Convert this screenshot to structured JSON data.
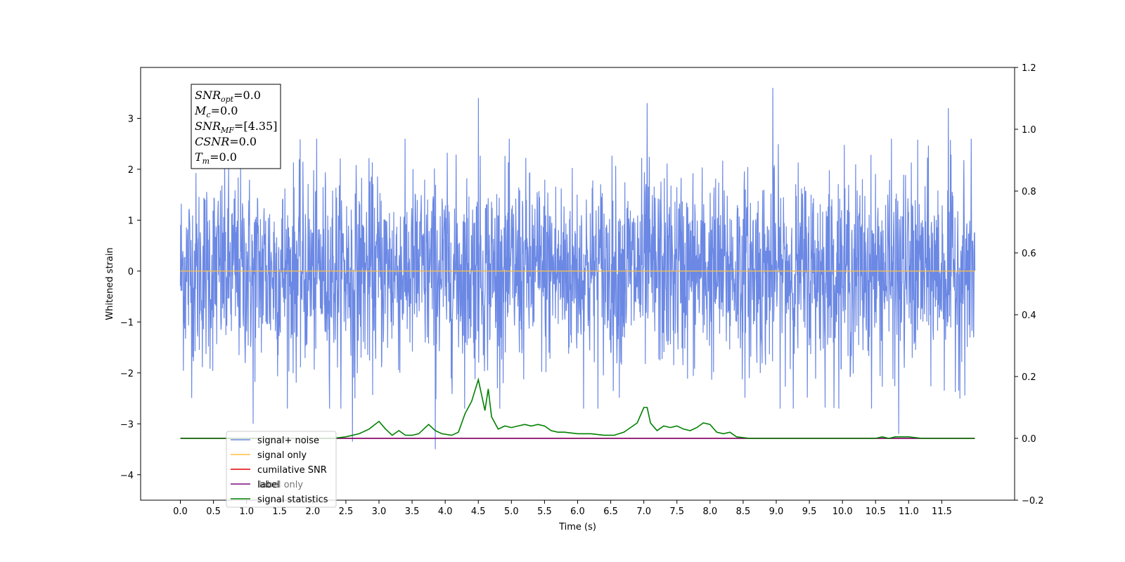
{
  "chart_data": {
    "type": "line",
    "xlabel": "Time (s)",
    "ylabel": "Whitened strain",
    "xlim": [
      -0.6,
      12.6
    ],
    "ylim": [
      -4.5,
      4.0
    ],
    "y2lim": [
      -0.2,
      1.2
    ],
    "grid": false,
    "legend_position": "lower-left",
    "x_ticks": [
      "0.0",
      "0.5",
      "1.0",
      "1.5",
      "2.0",
      "2.5",
      "3.0",
      "3.5",
      "4.0",
      "4.5",
      "5.0",
      "5.5",
      "6.0",
      "6.5",
      "7.0",
      "7.5",
      "8.0",
      "8.5",
      "9.0",
      "9.5",
      "10.0",
      "10.5",
      "11.0",
      "11.5"
    ],
    "y_ticks": [
      "−4",
      "−3",
      "−2",
      "−1",
      "0",
      "1",
      "2",
      "3"
    ],
    "y2_ticks": [
      "−0.2",
      "0.0",
      "0.2",
      "0.4",
      "0.6",
      "0.8",
      "1.0",
      "1.2"
    ],
    "series": [
      {
        "name": "signal+ noise",
        "color": "#6b88e4",
        "axis": "left",
        "description": "dense noise band, range approx -3.5 to 3.6, spread approx ±1.6",
        "x_range": [
          0.0,
          12.0
        ],
        "peaks": [
          {
            "x": 4.5,
            "y": 3.4
          },
          {
            "x": 8.95,
            "y": 3.6
          },
          {
            "x": 11.6,
            "y": 3.2
          },
          {
            "x": 7.05,
            "y": 3.3
          },
          {
            "x": 3.85,
            "y": -3.5
          },
          {
            "x": 2.6,
            "y": -3.35
          },
          {
            "x": 10.85,
            "y": -3.2
          },
          {
            "x": 1.1,
            "y": -3.0
          }
        ]
      },
      {
        "name": "signal only",
        "color": "#ffbf40",
        "axis": "left",
        "x": [
          0.0,
          12.0
        ],
        "y": [
          0.0,
          0.0
        ]
      },
      {
        "name": "cumilative SNR",
        "color": "#e00000",
        "axis": "right",
        "x": [
          0.0,
          12.0
        ],
        "y": [
          0.0,
          0.0
        ]
      },
      {
        "name": "label",
        "color": "#7a0e7a",
        "axis": "right",
        "x": [
          0.0,
          12.0
        ],
        "y": [
          0.0,
          0.0
        ]
      },
      {
        "name": "signal statistics",
        "color": "#008000",
        "axis": "right",
        "x": [
          0.0,
          2.3,
          2.5,
          2.7,
          2.85,
          3.0,
          3.1,
          3.2,
          3.3,
          3.4,
          3.5,
          3.6,
          3.75,
          3.85,
          3.95,
          4.1,
          4.2,
          4.3,
          4.4,
          4.5,
          4.6,
          4.65,
          4.7,
          4.8,
          4.9,
          5.0,
          5.1,
          5.2,
          5.3,
          5.4,
          5.5,
          5.6,
          5.7,
          5.8,
          6.0,
          6.2,
          6.4,
          6.55,
          6.7,
          6.9,
          7.0,
          7.05,
          7.1,
          7.2,
          7.3,
          7.4,
          7.5,
          7.6,
          7.7,
          7.8,
          7.9,
          8.0,
          8.1,
          8.2,
          8.3,
          8.4,
          8.6,
          9.0,
          10.5,
          10.6,
          10.7,
          10.8,
          11.0,
          11.2,
          11.3,
          12.0
        ],
        "y": [
          0.0,
          0.0,
          0.005,
          0.015,
          0.03,
          0.055,
          0.03,
          0.01,
          0.025,
          0.01,
          0.01,
          0.015,
          0.045,
          0.025,
          0.015,
          0.01,
          0.02,
          0.08,
          0.12,
          0.19,
          0.09,
          0.16,
          0.07,
          0.03,
          0.04,
          0.035,
          0.04,
          0.045,
          0.04,
          0.045,
          0.04,
          0.025,
          0.02,
          0.02,
          0.015,
          0.015,
          0.01,
          0.01,
          0.02,
          0.05,
          0.1,
          0.1,
          0.05,
          0.025,
          0.04,
          0.035,
          0.04,
          0.03,
          0.025,
          0.035,
          0.05,
          0.045,
          0.02,
          0.015,
          0.02,
          0.005,
          0.0,
          0.0,
          0.0,
          0.005,
          0.0,
          0.005,
          0.005,
          0.0,
          0.0,
          0.0
        ]
      }
    ]
  },
  "info_box": {
    "lines": [
      {
        "label": "SNR",
        "sub": "opt",
        "value": "=0.0"
      },
      {
        "label": "M",
        "sub": "c",
        "value": "=0.0"
      },
      {
        "label": "SNR",
        "sub": "MF",
        "value": "=[4.35]"
      },
      {
        "label": "CSNR",
        "sub": "",
        "value": "=0.0"
      },
      {
        "label": "T",
        "sub": "m",
        "value": "=0.0"
      }
    ]
  },
  "legend": {
    "overlapped_text": "label only"
  }
}
